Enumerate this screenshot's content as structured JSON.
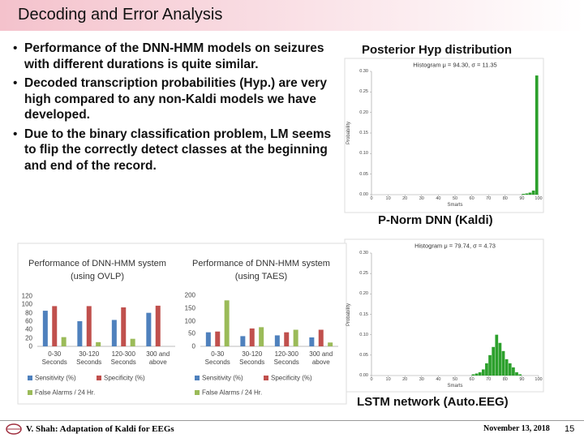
{
  "slide": {
    "title": "Decoding and Error Analysis",
    "bullets": [
      "Performance of the DNN-HMM models on seizures with different durations is quite similar.",
      "Decoded transcription probabilities (Hyp.) are very high compared to any non-Kaldi models we have developed.",
      "Due to the binary classification problem, LM seems to flip the correctly detect classes at the beginning and end of the record."
    ],
    "captions": [
      "Posterior Hyp distribution",
      "P-Norm DNN (Kaldi)",
      "LSTM network (Auto.EEG)"
    ],
    "footer": {
      "author": "V. Shah: Adaptation of Kaldi for EEGs",
      "date": "November 13, 2018",
      "page": "15"
    }
  },
  "chart_data": [
    {
      "type": "bar",
      "title": "Performance of DNN-HMM system (using OVLP)",
      "categories": [
        "0-30 Seconds",
        "30-120 Seconds",
        "120-300 Seconds",
        "300 and above"
      ],
      "series": [
        {
          "name": "Sensitivity (%)",
          "color": "#4f81bd",
          "values": [
            85,
            60,
            63,
            80
          ]
        },
        {
          "name": "Specificity (%)",
          "color": "#c0504d",
          "values": [
            96,
            96,
            93,
            97
          ]
        },
        {
          "name": "False Alarms / 24 Hr.",
          "color": "#9bbb59",
          "values": [
            22,
            10,
            18,
            null
          ]
        }
      ],
      "ylim": [
        0,
        120
      ],
      "yticks": [
        0,
        20,
        40,
        60,
        80,
        100,
        120
      ]
    },
    {
      "type": "bar",
      "title": "Performance of DNN-HMM system (using TAES)",
      "categories": [
        "0-30 Seconds",
        "30-120 Seconds",
        "120-300 Seconds",
        "300 and above"
      ],
      "series": [
        {
          "name": "Sensitivity (%)",
          "color": "#4f81bd",
          "values": [
            55,
            40,
            43,
            35
          ]
        },
        {
          "name": "Specificity (%)",
          "color": "#c0504d",
          "values": [
            58,
            70,
            55,
            65
          ]
        },
        {
          "name": "False Alarms / 24 Hr.",
          "color": "#9bbb59",
          "values": [
            180,
            75,
            65,
            15
          ]
        }
      ],
      "ylim": [
        0,
        200
      ],
      "yticks": [
        0,
        50,
        100,
        150,
        200
      ]
    },
    {
      "type": "histogram",
      "title": "Histogram μ = 94.30, σ = 11.35",
      "xlabel": "Smarts",
      "ylabel": "Probability",
      "color": "#2ca02c",
      "bins": [
        80,
        82,
        84,
        86,
        88,
        90,
        92,
        94,
        96,
        98,
        100
      ],
      "values": [
        0,
        0,
        0,
        0,
        0,
        0.002,
        0.003,
        0.005,
        0.01,
        0.29
      ],
      "xlim": [
        0,
        100
      ],
      "xticks": [
        0,
        10,
        20,
        30,
        40,
        50,
        60,
        70,
        80,
        90,
        100
      ],
      "ylim": [
        0,
        0.3
      ],
      "yticks": [
        {
          "value": 0,
          "label": "0.00"
        },
        {
          "value": 0.05,
          "label": "0.05"
        },
        {
          "value": 0.1,
          "label": "0.10"
        },
        {
          "value": 0.15,
          "label": "0.15"
        },
        {
          "value": 0.2,
          "label": "0.20"
        },
        {
          "value": 0.25,
          "label": "0.25"
        },
        {
          "value": 0.3,
          "label": "0.30"
        }
      ]
    },
    {
      "type": "histogram",
      "title": "Histogram μ = 79.74, σ = 4.73",
      "xlabel": "Smarts",
      "ylabel": "Probability",
      "color": "#2ca02c",
      "bins": [
        60,
        62,
        64,
        66,
        68,
        70,
        72,
        74,
        76,
        78,
        80,
        82,
        84,
        86,
        88,
        90
      ],
      "values": [
        0.003,
        0.005,
        0.008,
        0.015,
        0.03,
        0.05,
        0.07,
        0.1,
        0.08,
        0.06,
        0.04,
        0.03,
        0.02,
        0.008,
        0.003
      ],
      "xlim": [
        0,
        100
      ],
      "xticks": [
        0,
        10,
        20,
        30,
        40,
        50,
        60,
        70,
        80,
        90,
        100
      ],
      "ylim": [
        0,
        0.3
      ],
      "yticks": [
        {
          "value": 0,
          "label": "0.00"
        },
        {
          "value": 0.05,
          "label": "0.05"
        },
        {
          "value": 0.1,
          "label": "0.10"
        },
        {
          "value": 0.15,
          "label": "0.15"
        },
        {
          "value": 0.2,
          "label": "0.20"
        },
        {
          "value": 0.25,
          "label": "0.25"
        },
        {
          "value": 0.3,
          "label": "0.30"
        }
      ]
    }
  ]
}
